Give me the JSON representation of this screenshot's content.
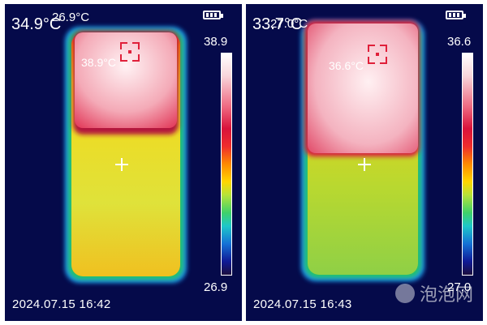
{
  "left": {
    "center_temp": "34.9°C",
    "small_label": "26.9°C",
    "hot_label": "38.9°C",
    "scale_max": "38.9",
    "scale_min": "26.9",
    "timestamp": "2024.07.15   16:42"
  },
  "right": {
    "center_temp": "33.7°C",
    "small_label": "27.0°C",
    "hot_label": "36.6°C",
    "scale_max": "36.6",
    "scale_min": "27.0",
    "timestamp": "2024.07.15   16:43"
  },
  "watermark": {
    "text": "泡泡网"
  },
  "icons": {
    "battery": "battery-icon",
    "center_crosshair": "crosshair-icon",
    "hotspot_reticle": "hotspot-reticle-icon",
    "watermark_logo": "watermark-logo-icon"
  }
}
